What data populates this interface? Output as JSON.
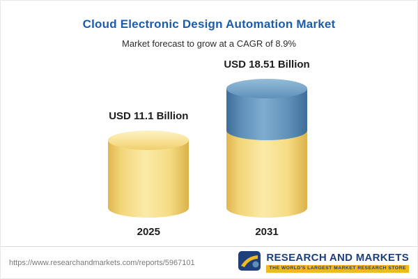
{
  "header": {
    "title": "Cloud Electronic Design Automation Market",
    "subtitle": "Market forecast to grow at a CAGR of 8.9%"
  },
  "chart_data": {
    "type": "bar",
    "variant": "3d-cylinder",
    "title": "Cloud Electronic Design Automation Market",
    "subtitle": "Market forecast to grow at a CAGR of 8.9%",
    "categories": [
      "2025",
      "2031"
    ],
    "values": [
      11.1,
      18.51
    ],
    "labels": [
      "USD 11.1 Billion",
      "USD 18.51 Billion"
    ],
    "series": [
      {
        "name": "base-2025-level",
        "values": [
          11.1,
          11.1
        ],
        "color": "#f2d579"
      },
      {
        "name": "growth-to-2031",
        "values": [
          0,
          7.41
        ],
        "color": "#5d8fb8"
      }
    ],
    "unit": "USD Billion",
    "cagr": "8.9%",
    "xlabel": "",
    "ylabel": "",
    "legend": "none",
    "grid": false,
    "ylim": [
      0,
      20
    ]
  },
  "footer": {
    "url": "https://www.researchandmarkets.com/reports/5967101",
    "brand": {
      "name": "RESEARCH AND MARKETS",
      "tagline": "THE WORLD'S LARGEST MARKET RESEARCH STORE"
    }
  },
  "colors": {
    "title_blue": "#1a5dad",
    "cylinder_yellow": "#f2d579",
    "cylinder_blue": "#5d8fb8",
    "brand_navy": "#1e3f7a",
    "brand_gold": "#f0b923"
  }
}
